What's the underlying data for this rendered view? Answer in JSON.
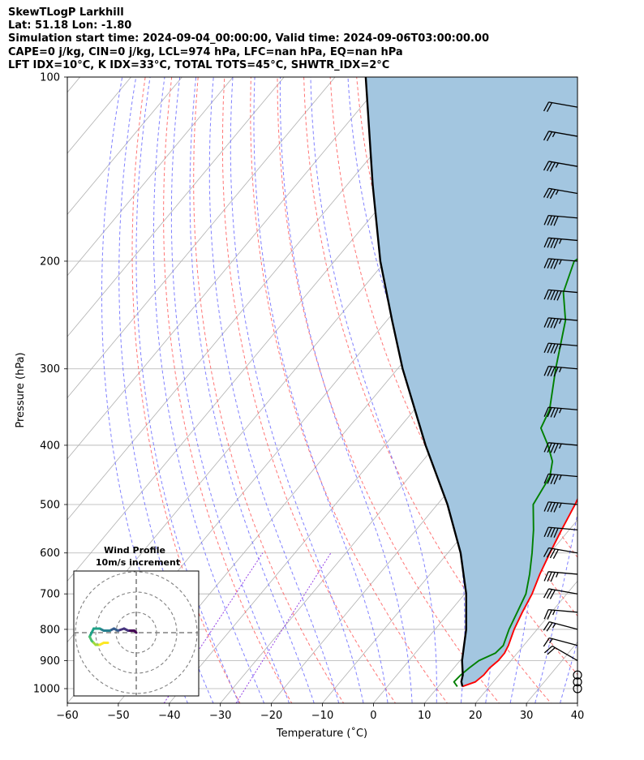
{
  "header": {
    "line1": "SkewTLogP Larkhill",
    "line2": "Lat: 51.18   Lon: -1.80",
    "line3": "Simulation start time: 2024-09-04_00:00:00, Valid time: 2024-09-06T03:00:00.00",
    "line4": "CAPE=0 j/kg, CIN=0 j/kg, LCL=974 hPa, LFC=nan hPa, EQ=nan hPa",
    "line5": "LFT IDX=10°C, K IDX=33°C, TOTAL TOTS=45°C, SHWTR_IDX=2°C"
  },
  "colors": {
    "temperature": "#ff0000",
    "dewpoint": "#008000",
    "parcel": "#000000",
    "fill": "#a3c6e0",
    "dry_adiabat": "#ff6666",
    "moist_adiabat": "#6b6bff",
    "mixing_ratio": "#8a2be2",
    "isotherm": "#b0b0b0"
  },
  "chart_data": [
    {
      "type": "line",
      "subtype": "skew-T log-P",
      "xlabel": "Temperature (˚C)",
      "ylabel": "Pressure (hPa)",
      "xlim": [
        -60,
        40
      ],
      "ylim": [
        1050,
        100
      ],
      "yscale": "log",
      "x_ticks": [
        -60,
        -50,
        -40,
        -30,
        -20,
        -10,
        0,
        10,
        20,
        30,
        40
      ],
      "x_tick_labels": [
        "−60",
        "−50",
        "−40",
        "−30",
        "−20",
        "−10",
        "0",
        "10",
        "20",
        "30",
        "40"
      ],
      "y_ticks": [
        1000,
        900,
        800,
        700,
        600,
        500,
        400,
        300,
        200,
        100
      ],
      "y_tick_labels": [
        "1000",
        "900",
        "800",
        "700",
        "600",
        "500",
        "400",
        "300",
        "200",
        "100"
      ],
      "grid": true,
      "series": [
        {
          "key": "temperature",
          "p": [
            992,
            975,
            950,
            925,
            900,
            875,
            850,
            800,
            750,
            700,
            650,
            600,
            550,
            500,
            450,
            400,
            350,
            300,
            250,
            225,
            200,
            190,
            175,
            160,
            150,
            140,
            130,
            120,
            110,
            100
          ],
          "t": [
            14.7,
            16.5,
            17.0,
            17.0,
            17.5,
            17.5,
            17.0,
            15.5,
            14.3,
            13.2,
            11.5,
            10.0,
            8.5,
            7.0,
            5.0,
            2.5,
            -2.2,
            -6.5,
            -12.0,
            -13.5,
            -14.5,
            -13.0,
            -9.5,
            -4.0,
            -1.5,
            1.5,
            5.0,
            8.0,
            10.3,
            13.7
          ]
        },
        {
          "key": "dewpoint",
          "p": [
            992,
            975,
            950,
            925,
            900,
            875,
            850,
            800,
            750,
            700,
            650,
            600,
            550,
            500,
            450,
            425,
            400,
            375,
            350,
            300,
            250,
            225,
            200,
            190,
            175,
            160,
            150,
            140,
            120,
            100
          ],
          "td": [
            13.7,
            12.3,
            12.5,
            13.0,
            13.7,
            15.7,
            16.0,
            14.5,
            13.3,
            12.0,
            9.5,
            6.5,
            3.0,
            -1.2,
            -2.5,
            -4.5,
            -8.0,
            -12.2,
            -13.5,
            -19.0,
            -25.0,
            -30.0,
            -33.0,
            -31.0,
            -30.0,
            -33.0,
            -39.0,
            -35.0,
            -16.5,
            0.5
          ]
        },
        {
          "key": "parcel",
          "p": [
            992,
            974,
            950,
            900,
            850,
            800,
            700,
            600,
            500,
            400,
            300,
            250,
            200,
            150,
            100
          ],
          "t": [
            14.7,
            13.7,
            12.9,
            10.4,
            8.3,
            6.1,
            0.3,
            -7.5,
            -18.0,
            -32.0,
            -49.0,
            -59.0,
            -71.0,
            -85.0,
            -104.0
          ]
        }
      ],
      "wind_barbs": {
        "p": [
          1000,
          975,
          950,
          900,
          850,
          800,
          750,
          700,
          650,
          600,
          550,
          500,
          450,
          400,
          350,
          300,
          275,
          250,
          225,
          200,
          185,
          170,
          155,
          140,
          125,
          112
        ],
        "speed_kt": [
          0,
          0,
          0,
          20,
          15,
          25,
          25,
          30,
          35,
          40,
          40,
          45,
          45,
          45,
          45,
          45,
          45,
          45,
          50,
          45,
          45,
          40,
          35,
          35,
          25,
          20
        ],
        "direction_deg": [
          0,
          0,
          0,
          300,
          285,
          285,
          275,
          280,
          275,
          280,
          275,
          275,
          275,
          275,
          275,
          275,
          275,
          275,
          275,
          275,
          275,
          275,
          280,
          280,
          280,
          280
        ]
      }
    },
    {
      "type": "scatter",
      "subtype": "hodograph",
      "title": "Wind Profile",
      "subtitle": "10m/s increment",
      "rings_ms": [
        10,
        20,
        30
      ],
      "u": [
        0,
        -1,
        -2,
        -4,
        -6,
        -9,
        -11,
        -13,
        -16,
        -18,
        -21,
        -22,
        -23,
        -22,
        -21,
        -20,
        -18,
        -16,
        -14
      ],
      "v": [
        0,
        1,
        1,
        1,
        2,
        1,
        2,
        1,
        1,
        2,
        2,
        0,
        -2,
        -4,
        -5,
        -6,
        -6,
        -5,
        -5
      ]
    }
  ]
}
